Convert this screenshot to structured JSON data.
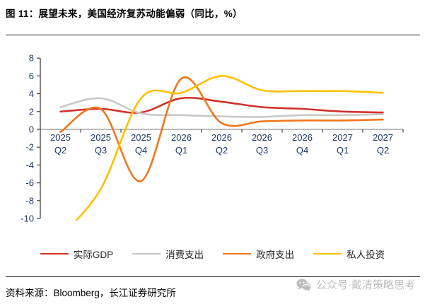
{
  "header": {
    "title": "图 11：展望未来，美国经济复苏动能偏弱（同比，%）"
  },
  "chart_data": {
    "type": "line",
    "categories": [
      "2025 Q2",
      "2025 Q3",
      "2025 Q4",
      "2026 Q1",
      "2026 Q2",
      "2026 Q3",
      "2026 Q4",
      "2027 Q1",
      "2027 Q2"
    ],
    "series": [
      {
        "name": "实际GDP",
        "color": "#D2322B",
        "values": [
          2.0,
          2.3,
          1.9,
          3.5,
          3.1,
          2.5,
          2.3,
          2.0,
          1.9
        ]
      },
      {
        "name": "消费支出",
        "color": "#C9C9C9",
        "values": [
          2.5,
          3.5,
          1.8,
          1.6,
          1.45,
          1.4,
          1.6,
          1.6,
          1.7
        ]
      },
      {
        "name": "政府支出",
        "color": "#F0761F",
        "values": [
          -0.3,
          2.3,
          -5.8,
          5.7,
          0.7,
          0.9,
          1.0,
          1.0,
          1.1
        ]
      },
      {
        "name": "私人投资",
        "color": "#FFC000",
        "values": [
          -12,
          -6.7,
          3.5,
          4.1,
          6.0,
          4.4,
          4.3,
          4.3,
          4.1
        ]
      }
    ],
    "ylim": [
      -10,
      8
    ],
    "ytick_step": 2,
    "smooth": true,
    "grid": "off",
    "legend_position": "bottom",
    "clip_below_ymin": true,
    "colors": {
      "axis": "#404040",
      "zero_line": "#909090",
      "tick_labels": "#203864"
    }
  },
  "footer": {
    "source": "资料来源：Bloomberg，长江证券研究所",
    "watermark": "公众号·戴清策略思考"
  }
}
